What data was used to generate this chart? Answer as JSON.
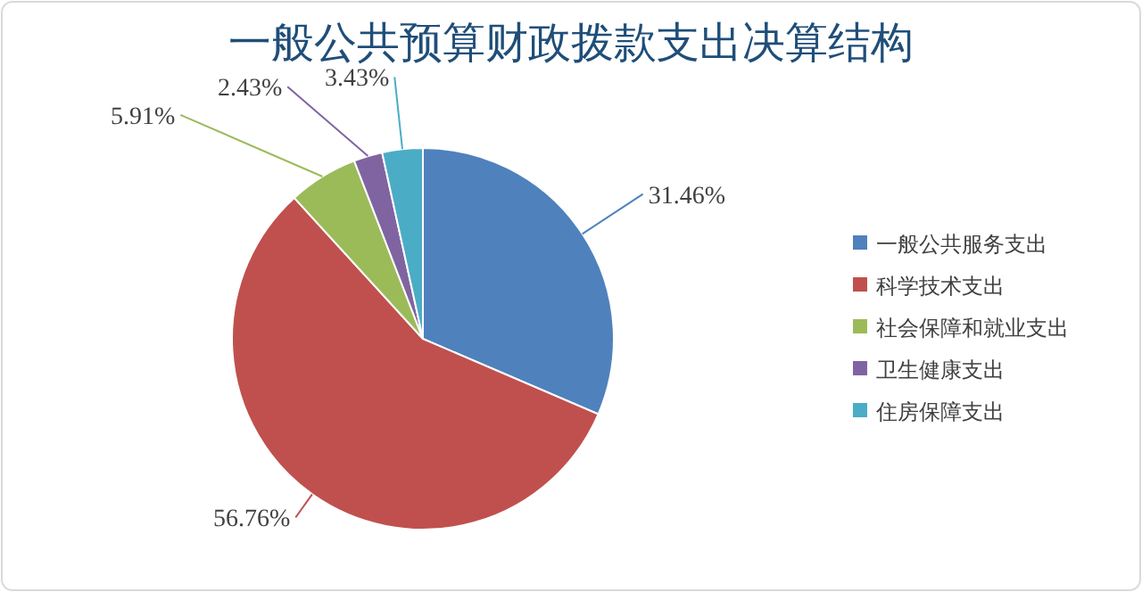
{
  "chart_data": {
    "type": "pie",
    "title": "一般公共预算财政拨款支出决算结构",
    "categories": [
      "一般公共服务支出",
      "科学技术支出",
      "社会保障和就业支出",
      "卫生健康支出",
      "住房保障支出"
    ],
    "values": [
      31.46,
      56.76,
      5.91,
      2.43,
      3.43
    ],
    "colors": [
      "#4f81bd",
      "#c0504d",
      "#9bbb59",
      "#8064a2",
      "#4bacc6"
    ],
    "value_labels": [
      "31.46%",
      "56.76%",
      "5.91%",
      "2.43%",
      "3.43%"
    ],
    "legend": "right"
  }
}
